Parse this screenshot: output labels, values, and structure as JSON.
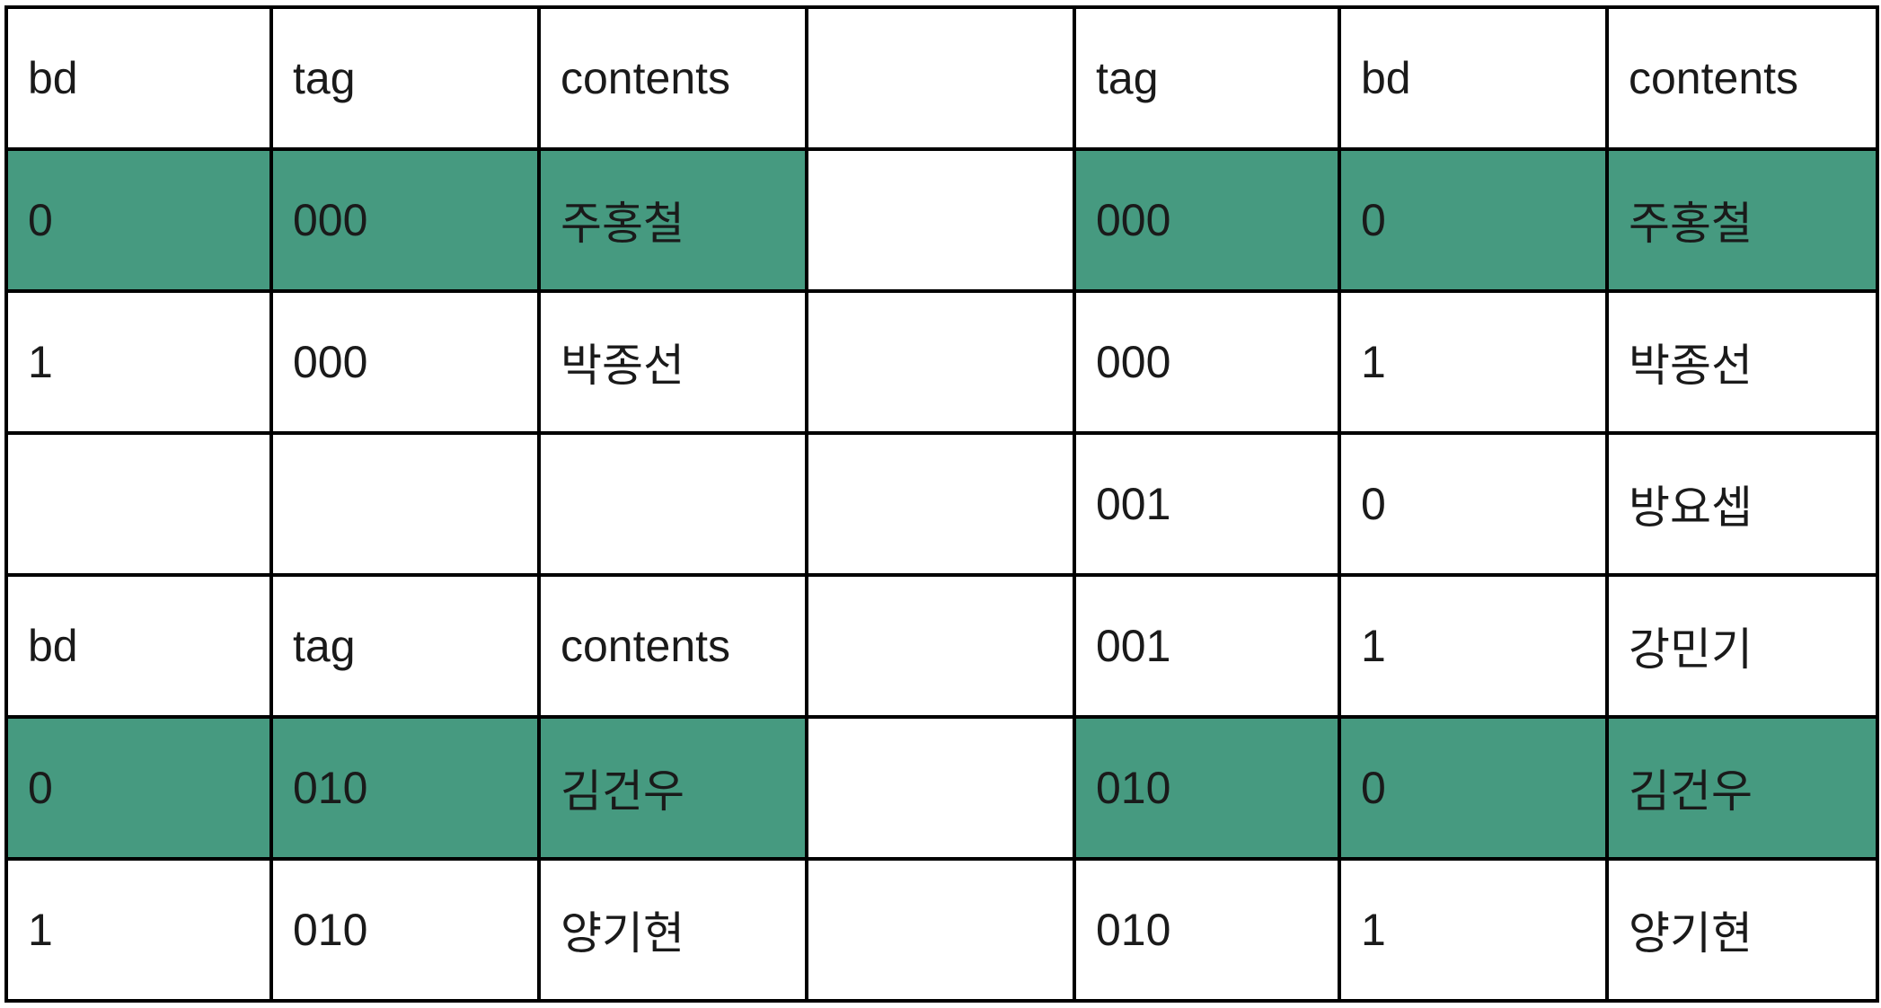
{
  "highlight_color": "#469a80",
  "rows": [
    {
      "highlight": false,
      "left": [
        "bd",
        "tag",
        "contents"
      ],
      "right": [
        "tag",
        "bd",
        "contents"
      ]
    },
    {
      "highlight": true,
      "left": [
        "0",
        "000",
        "주홍철"
      ],
      "right": [
        "000",
        "0",
        "주홍철"
      ]
    },
    {
      "highlight": false,
      "left": [
        "1",
        "000",
        "박종선"
      ],
      "right": [
        "000",
        "1",
        "박종선"
      ]
    },
    {
      "highlight": false,
      "left": [
        "",
        "",
        ""
      ],
      "right": [
        "001",
        "0",
        "방요셉"
      ]
    },
    {
      "highlight": false,
      "left": [
        "bd",
        "tag",
        "contents"
      ],
      "right": [
        "001",
        "1",
        "강민기"
      ]
    },
    {
      "highlight": true,
      "left": [
        "0",
        "010",
        "김건우"
      ],
      "right": [
        "010",
        "0",
        "김건우"
      ]
    },
    {
      "highlight": false,
      "left": [
        "1",
        "010",
        "양기현"
      ],
      "right": [
        "010",
        "1",
        "양기현"
      ]
    }
  ]
}
